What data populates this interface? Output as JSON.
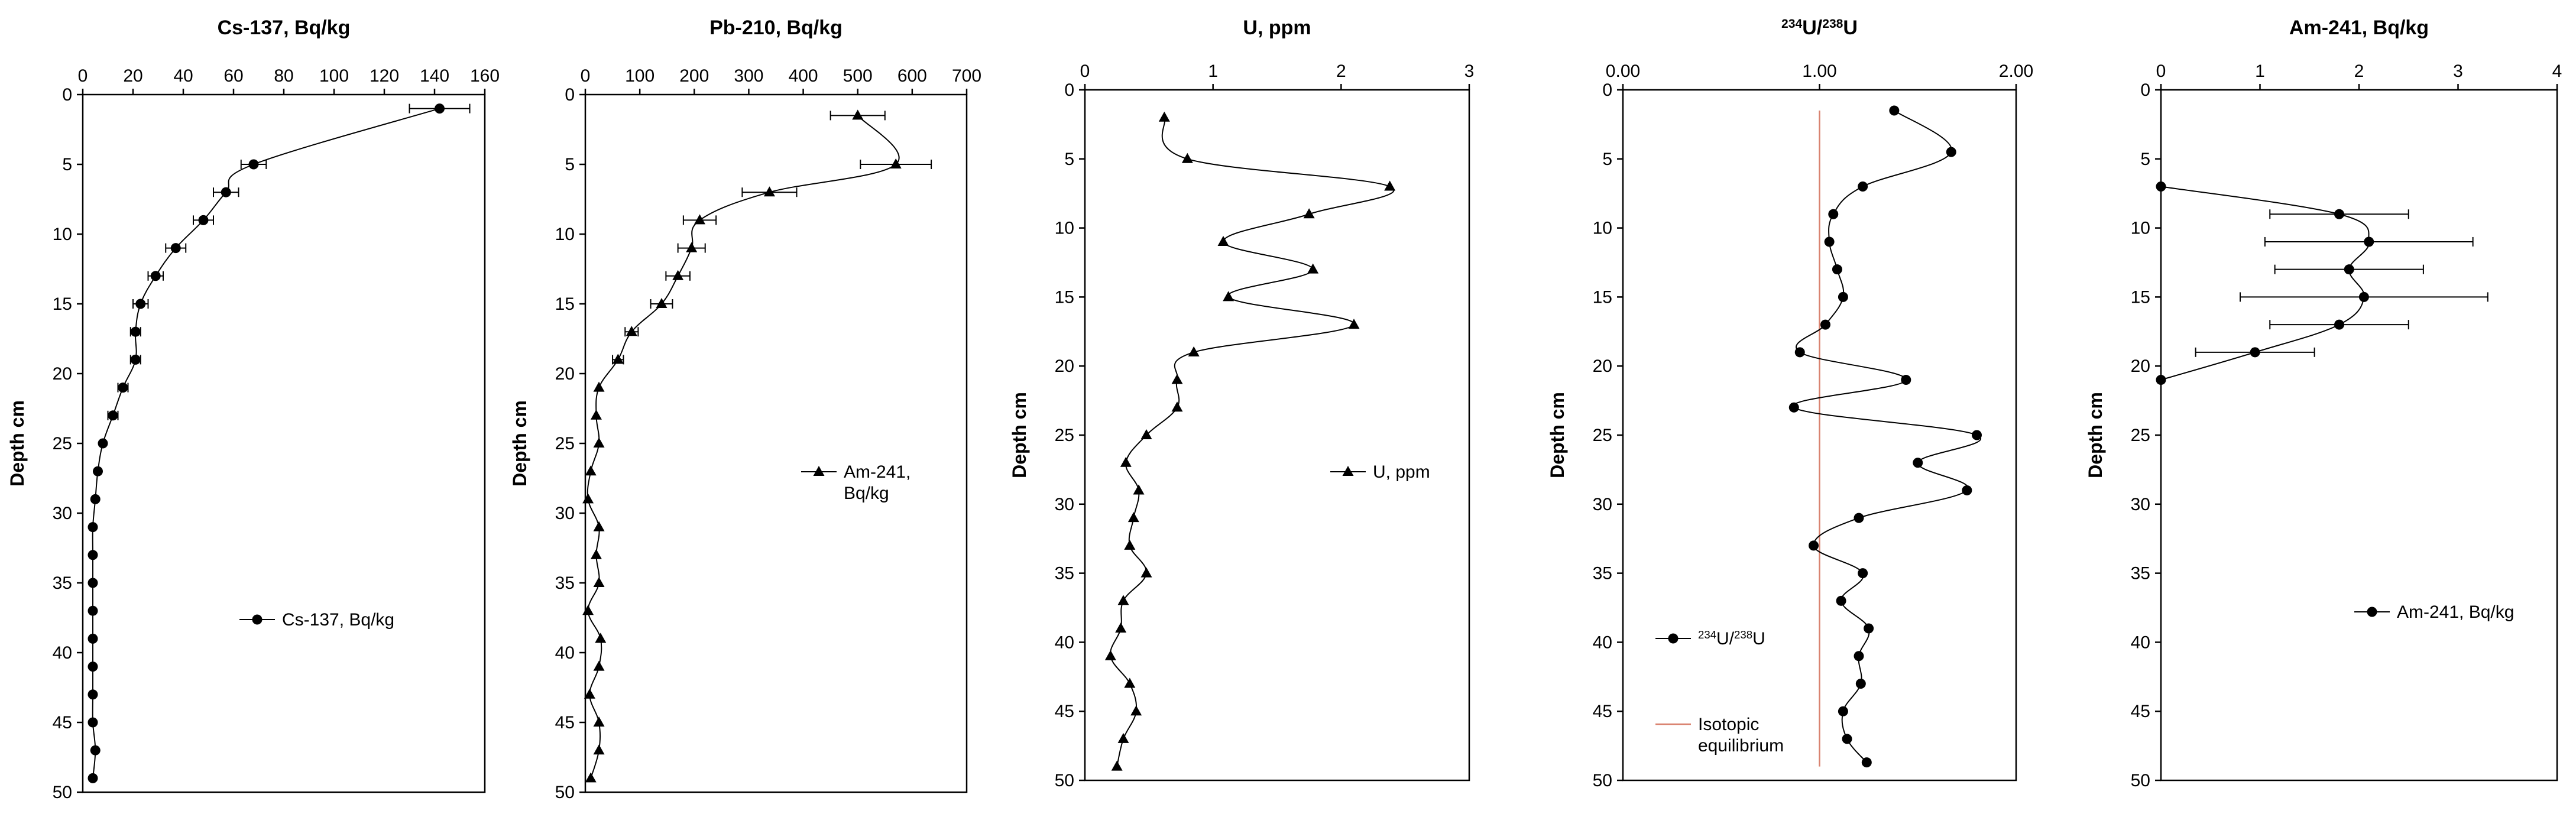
{
  "figure": {
    "description": "Five depth-profile panels"
  },
  "chart_data": [
    {
      "type": "line",
      "title": "Cs-137, Bq/kg",
      "title_parts": [
        {
          "text": "Cs-137, Bq/kg",
          "sup": false
        }
      ],
      "xlabel": "Cs-137, Bq/kg",
      "ylabel": "Depth cm",
      "show_ylabel": true,
      "xlim": [
        0,
        160
      ],
      "ylim": [
        0,
        50
      ],
      "xticks": [
        0,
        20,
        40,
        60,
        80,
        100,
        120,
        140,
        160
      ],
      "xtick_labels": [
        "0",
        "20",
        "40",
        "60",
        "80",
        "100",
        "120",
        "140",
        "160"
      ],
      "yticks": [
        0,
        5,
        10,
        15,
        20,
        25,
        30,
        35,
        40,
        45,
        50
      ],
      "ytick_labels": [
        "0",
        "5",
        "10",
        "15",
        "20",
        "25",
        "30",
        "35",
        "40",
        "45",
        "50"
      ],
      "marker": "circle",
      "legend": "Cs-137, Bq/kg",
      "legend_position": "lower-right",
      "series": [
        {
          "name": "Cs-137, Bq/kg",
          "points": [
            {
              "x": 142,
              "y": 1.0,
              "err": 12
            },
            {
              "x": 68,
              "y": 5.0,
              "err": 5
            },
            {
              "x": 57,
              "y": 7.0,
              "err": 5
            },
            {
              "x": 48,
              "y": 9.0,
              "err": 4
            },
            {
              "x": 37,
              "y": 11.0,
              "err": 4
            },
            {
              "x": 29,
              "y": 13.0,
              "err": 3
            },
            {
              "x": 23,
              "y": 15.0,
              "err": 3
            },
            {
              "x": 21,
              "y": 17.0,
              "err": 2
            },
            {
              "x": 21,
              "y": 19.0,
              "err": 2
            },
            {
              "x": 16,
              "y": 21.0,
              "err": 2
            },
            {
              "x": 12,
              "y": 23.0,
              "err": 2
            },
            {
              "x": 8,
              "y": 25.0,
              "err": 0
            },
            {
              "x": 6,
              "y": 27.0,
              "err": 0
            },
            {
              "x": 5,
              "y": 29.0,
              "err": 0
            },
            {
              "x": 4,
              "y": 31.0,
              "err": 0
            },
            {
              "x": 4,
              "y": 33.0,
              "err": 0
            },
            {
              "x": 4,
              "y": 35.0,
              "err": 0
            },
            {
              "x": 4,
              "y": 37.0,
              "err": 0
            },
            {
              "x": 4,
              "y": 39.0,
              "err": 0
            },
            {
              "x": 4,
              "y": 41.0,
              "err": 0
            },
            {
              "x": 4,
              "y": 43.0,
              "err": 0
            },
            {
              "x": 4,
              "y": 45.0,
              "err": 0
            },
            {
              "x": 5,
              "y": 47.0,
              "err": 0
            },
            {
              "x": 4,
              "y": 49.0,
              "err": 0
            }
          ]
        }
      ]
    },
    {
      "type": "line",
      "title": "Pb-210, Bq/kg",
      "title_parts": [
        {
          "text": "Pb-210, Bq/kg",
          "sup": false
        }
      ],
      "xlabel": "Pb-210, Bq/kg",
      "ylabel": "Depth cm",
      "show_ylabel": true,
      "xlim": [
        0,
        700
      ],
      "ylim": [
        0,
        50
      ],
      "xticks": [
        0,
        100,
        200,
        300,
        400,
        500,
        600,
        700
      ],
      "xtick_labels": [
        "0",
        "100",
        "200",
        "300",
        "400",
        "500",
        "600",
        "700"
      ],
      "yticks": [
        0,
        5,
        10,
        15,
        20,
        25,
        30,
        35,
        40,
        45,
        50
      ],
      "ytick_labels": [
        "0",
        "5",
        "10",
        "15",
        "20",
        "25",
        "30",
        "35",
        "40",
        "45",
        "50"
      ],
      "marker": "triangle",
      "legend": "Am-241, Bq/kg",
      "legend_lines": [
        "Am-241,",
        "Bq/kg"
      ],
      "legend_position": "right-middle",
      "series": [
        {
          "name": "Am-241, Bq/kg",
          "points": [
            {
              "x": 500,
              "y": 1.5,
              "err": 50
            },
            {
              "x": 570,
              "y": 5.0,
              "err": 65
            },
            {
              "x": 338,
              "y": 7.0,
              "err": 50
            },
            {
              "x": 210,
              "y": 9.0,
              "err": 30
            },
            {
              "x": 195,
              "y": 11.0,
              "err": 25
            },
            {
              "x": 170,
              "y": 13.0,
              "err": 22
            },
            {
              "x": 140,
              "y": 15.0,
              "err": 20
            },
            {
              "x": 85,
              "y": 17.0,
              "err": 12
            },
            {
              "x": 60,
              "y": 19.0,
              "err": 10
            },
            {
              "x": 25,
              "y": 21.0,
              "err": 0
            },
            {
              "x": 20,
              "y": 23.0,
              "err": 0
            },
            {
              "x": 25,
              "y": 25.0,
              "err": 0
            },
            {
              "x": 10,
              "y": 27.0,
              "err": 0
            },
            {
              "x": 5,
              "y": 29.0,
              "err": 0
            },
            {
              "x": 25,
              "y": 31.0,
              "err": 0
            },
            {
              "x": 20,
              "y": 33.0,
              "err": 0
            },
            {
              "x": 25,
              "y": 35.0,
              "err": 0
            },
            {
              "x": 5,
              "y": 37.0,
              "err": 0
            },
            {
              "x": 28,
              "y": 39.0,
              "err": 0
            },
            {
              "x": 25,
              "y": 41.0,
              "err": 0
            },
            {
              "x": 8,
              "y": 43.0,
              "err": 0
            },
            {
              "x": 25,
              "y": 45.0,
              "err": 0
            },
            {
              "x": 25,
              "y": 47.0,
              "err": 0
            },
            {
              "x": 10,
              "y": 49.0,
              "err": 0
            }
          ]
        }
      ]
    },
    {
      "type": "line",
      "title": "U, ppm",
      "title_parts": [
        {
          "text": "U, ppm",
          "sup": false
        }
      ],
      "xlabel": "U, ppm",
      "ylabel": "Depth cm",
      "show_ylabel": true,
      "xlim": [
        0,
        3
      ],
      "ylim": [
        0,
        50
      ],
      "xticks": [
        0,
        1,
        2,
        3
      ],
      "xtick_labels": [
        "0",
        "1",
        "2",
        "3"
      ],
      "yticks": [
        0,
        5,
        10,
        15,
        20,
        25,
        30,
        35,
        40,
        45,
        50
      ],
      "ytick_labels": [
        "0",
        "5",
        "10",
        "15",
        "20",
        "25",
        "30",
        "35",
        "40",
        "45",
        "50"
      ],
      "marker": "triangle",
      "legend": "U, ppm",
      "legend_position": "right-middle",
      "series": [
        {
          "name": "U, ppm",
          "points": [
            {
              "x": 0.62,
              "y": 2.0,
              "err": 0
            },
            {
              "x": 0.8,
              "y": 5.0,
              "err": 0
            },
            {
              "x": 2.38,
              "y": 7.0,
              "err": 0
            },
            {
              "x": 1.75,
              "y": 9.0,
              "err": 0
            },
            {
              "x": 1.08,
              "y": 11.0,
              "err": 0
            },
            {
              "x": 1.78,
              "y": 13.0,
              "err": 0
            },
            {
              "x": 1.12,
              "y": 15.0,
              "err": 0
            },
            {
              "x": 2.1,
              "y": 17.0,
              "err": 0
            },
            {
              "x": 0.85,
              "y": 19.0,
              "err": 0
            },
            {
              "x": 0.72,
              "y": 21.0,
              "err": 0
            },
            {
              "x": 0.72,
              "y": 23.0,
              "err": 0
            },
            {
              "x": 0.48,
              "y": 25.0,
              "err": 0
            },
            {
              "x": 0.32,
              "y": 27.0,
              "err": 0
            },
            {
              "x": 0.42,
              "y": 29.0,
              "err": 0
            },
            {
              "x": 0.38,
              "y": 31.0,
              "err": 0
            },
            {
              "x": 0.35,
              "y": 33.0,
              "err": 0
            },
            {
              "x": 0.48,
              "y": 35.0,
              "err": 0
            },
            {
              "x": 0.3,
              "y": 37.0,
              "err": 0
            },
            {
              "x": 0.28,
              "y": 39.0,
              "err": 0
            },
            {
              "x": 0.2,
              "y": 41.0,
              "err": 0
            },
            {
              "x": 0.35,
              "y": 43.0,
              "err": 0
            },
            {
              "x": 0.4,
              "y": 45.0,
              "err": 0
            },
            {
              "x": 0.3,
              "y": 47.0,
              "err": 0
            },
            {
              "x": 0.25,
              "y": 49.0,
              "err": 0
            }
          ]
        }
      ]
    },
    {
      "type": "line",
      "title": "234U/238U",
      "title_parts": [
        {
          "text": "234",
          "sup": true
        },
        {
          "text": "U/",
          "sup": false
        },
        {
          "text": "238",
          "sup": true
        },
        {
          "text": "U",
          "sup": false
        }
      ],
      "xlabel": "234U/238U",
      "ylabel": "Depth cm",
      "show_ylabel": true,
      "xlim": [
        0,
        2
      ],
      "ylim": [
        0,
        50
      ],
      "xticks": [
        0,
        1,
        2
      ],
      "xtick_labels": [
        "0.00",
        "1.00",
        "2.00"
      ],
      "yticks": [
        0,
        5,
        10,
        15,
        20,
        25,
        30,
        35,
        40,
        45,
        50
      ],
      "ytick_labels": [
        "0",
        "5",
        "10",
        "15",
        "20",
        "25",
        "30",
        "35",
        "40",
        "45",
        "50"
      ],
      "marker": "circle",
      "legend": "234U/238U",
      "legend_parts": [
        {
          "text": "234",
          "sup": true
        },
        {
          "text": "U/",
          "sup": false
        },
        {
          "text": "238",
          "sup": true
        },
        {
          "text": "U",
          "sup": false
        }
      ],
      "legend_position": "lower-left",
      "reference_line": {
        "x": 1.0,
        "label": "Isotopic equilibrium",
        "label_lines": [
          "Isotopic",
          "equilibrium"
        ],
        "color": "#d9826f"
      },
      "series": [
        {
          "name": "234U/238U",
          "points": [
            {
              "x": 1.38,
              "y": 1.5,
              "err": 0
            },
            {
              "x": 1.67,
              "y": 4.5,
              "err": 0
            },
            {
              "x": 1.22,
              "y": 7.0,
              "err": 0
            },
            {
              "x": 1.07,
              "y": 9.0,
              "err": 0
            },
            {
              "x": 1.05,
              "y": 11.0,
              "err": 0
            },
            {
              "x": 1.09,
              "y": 13.0,
              "err": 0
            },
            {
              "x": 1.12,
              "y": 15.0,
              "err": 0
            },
            {
              "x": 1.03,
              "y": 17.0,
              "err": 0
            },
            {
              "x": 0.9,
              "y": 19.0,
              "err": 0
            },
            {
              "x": 1.44,
              "y": 21.0,
              "err": 0
            },
            {
              "x": 0.87,
              "y": 23.0,
              "err": 0
            },
            {
              "x": 1.8,
              "y": 25.0,
              "err": 0
            },
            {
              "x": 1.5,
              "y": 27.0,
              "err": 0
            },
            {
              "x": 1.75,
              "y": 29.0,
              "err": 0
            },
            {
              "x": 1.2,
              "y": 31.0,
              "err": 0
            },
            {
              "x": 0.97,
              "y": 33.0,
              "err": 0
            },
            {
              "x": 1.22,
              "y": 35.0,
              "err": 0
            },
            {
              "x": 1.11,
              "y": 37.0,
              "err": 0
            },
            {
              "x": 1.25,
              "y": 39.0,
              "err": 0
            },
            {
              "x": 1.2,
              "y": 41.0,
              "err": 0
            },
            {
              "x": 1.21,
              "y": 43.0,
              "err": 0
            },
            {
              "x": 1.12,
              "y": 45.0,
              "err": 0
            },
            {
              "x": 1.14,
              "y": 47.0,
              "err": 0
            },
            {
              "x": 1.24,
              "y": 48.7,
              "err": 0
            }
          ]
        }
      ]
    },
    {
      "type": "line",
      "title": "Am-241, Bq/kg",
      "title_parts": [
        {
          "text": "Am-241, Bq/kg",
          "sup": false
        }
      ],
      "xlabel": "Am-241, Bq/kg",
      "ylabel": "Depth cm",
      "show_ylabel": true,
      "xlim": [
        0,
        4
      ],
      "ylim": [
        0,
        50
      ],
      "xticks": [
        0,
        1,
        2,
        3,
        4
      ],
      "xtick_labels": [
        "0",
        "1",
        "2",
        "3",
        "4"
      ],
      "yticks": [
        0,
        5,
        10,
        15,
        20,
        25,
        30,
        35,
        40,
        45,
        50
      ],
      "ytick_labels": [
        "0",
        "5",
        "10",
        "15",
        "20",
        "25",
        "30",
        "35",
        "40",
        "45",
        "50"
      ],
      "marker": "circle",
      "legend": "Am-241, Bq/kg",
      "legend_position": "lower-right",
      "series": [
        {
          "name": "Am-241, Bq/kg",
          "points": [
            {
              "x": 0.0,
              "y": 7.0,
              "err": 0
            },
            {
              "x": 1.8,
              "y": 9.0,
              "err": 0.7
            },
            {
              "x": 2.1,
              "y": 11.0,
              "err": 1.05
            },
            {
              "x": 1.9,
              "y": 13.0,
              "err": 0.75
            },
            {
              "x": 2.05,
              "y": 15.0,
              "err": 1.25
            },
            {
              "x": 1.8,
              "y": 17.0,
              "err": 0.7
            },
            {
              "x": 0.95,
              "y": 19.0,
              "err": 0.6
            },
            {
              "x": 0.0,
              "y": 21.0,
              "err": 0
            }
          ]
        }
      ]
    }
  ]
}
